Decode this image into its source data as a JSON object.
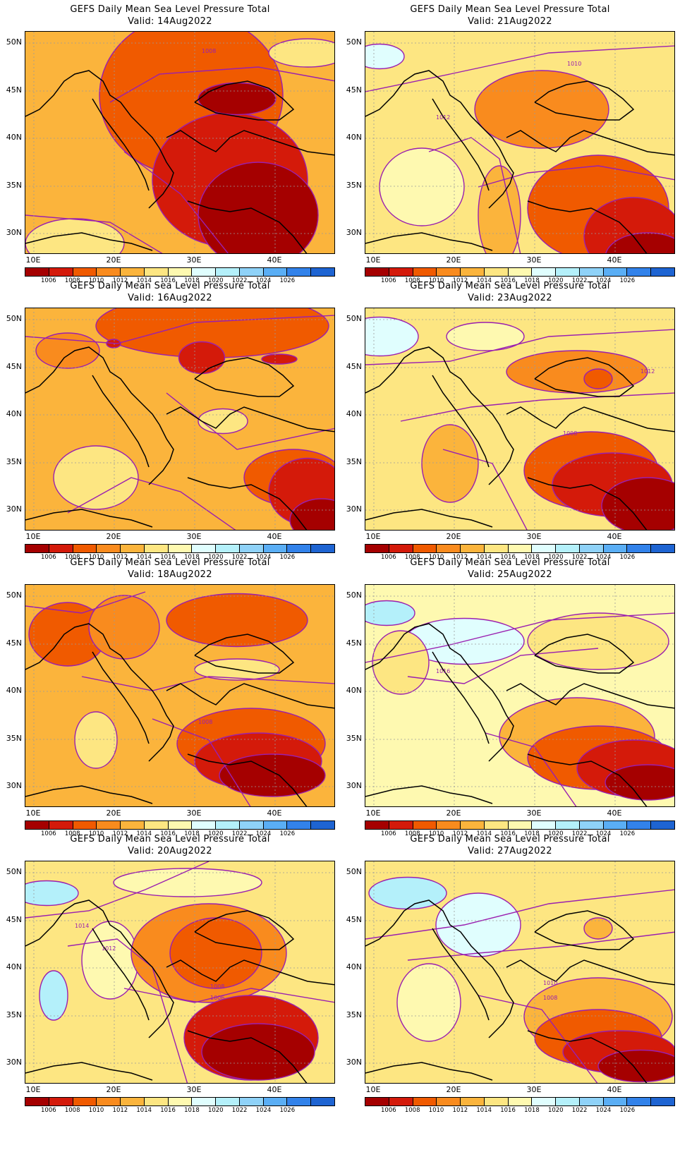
{
  "title": "GEFS Daily Mean Sea Level Pressure Total",
  "colorbar": {
    "levels": [
      "1006",
      "1008",
      "1010",
      "1012",
      "1014",
      "1016",
      "1018",
      "1020",
      "1022",
      "1024",
      "1026"
    ],
    "colors": [
      "#a50000",
      "#d41a0a",
      "#f05a00",
      "#f98b1e",
      "#fbb43c",
      "#fde682",
      "#fef9b0",
      "#e0fefe",
      "#b4f0fa",
      "#8fd2f8",
      "#5aaef5",
      "#3282ea",
      "#1e64d2"
    ]
  },
  "axes": {
    "lat_labels": [
      "50N",
      "45N",
      "40N",
      "35N",
      "30N"
    ],
    "lon_labels": [
      "10E",
      "20E",
      "30E",
      "40E"
    ]
  },
  "panels": [
    {
      "valid": "Valid: 14Aug2022",
      "contour_labels": [
        "1008"
      ]
    },
    {
      "valid": "Valid: 21Aug2022",
      "contour_labels": [
        "1012",
        "1010"
      ]
    },
    {
      "valid": "Valid: 16Aug2022",
      "contour_labels": []
    },
    {
      "valid": "Valid: 23Aug2022",
      "contour_labels": [
        "1012",
        "1008"
      ]
    },
    {
      "valid": "Valid: 18Aug2022",
      "contour_labels": [
        "1008"
      ]
    },
    {
      "valid": "Valid: 25Aug2022",
      "contour_labels": [
        "1016"
      ]
    },
    {
      "valid": "Valid: 20Aug2022",
      "contour_labels": [
        "1014",
        "1012",
        "1008",
        "1006"
      ]
    },
    {
      "valid": "Valid: 27Aug2022",
      "contour_labels": [
        "1010",
        "1008"
      ]
    }
  ],
  "maps": [
    {
      "bg": "#fbb43c",
      "blobs": [
        [
          235,
          90,
          260,
          230,
          "#f05a00"
        ],
        [
          290,
          210,
          220,
          190,
          "#d41a0a"
        ],
        [
          330,
          260,
          170,
          150,
          "#a50000"
        ],
        [
          300,
          95,
          110,
          45,
          "#a50000"
        ],
        [
          70,
          300,
          140,
          70,
          "#fde682"
        ],
        [
          400,
          30,
          110,
          40,
          "#fde682"
        ]
      ],
      "lines": [
        [
          0,
          260,
          120,
          270,
          220,
          330
        ],
        [
          120,
          100,
          190,
          60,
          330,
          50,
          440,
          70
        ],
        [
          140,
          170,
          220,
          230,
          300,
          330
        ]
      ],
      "clabels": [
        [
          250,
          30
        ]
      ]
    },
    {
      "bg": "#fde682",
      "blobs": [
        [
          20,
          35,
          70,
          35,
          "#e0fefe"
        ],
        [
          250,
          110,
          190,
          110,
          "#f98b1e"
        ],
        [
          330,
          250,
          200,
          150,
          "#f05a00"
        ],
        [
          380,
          290,
          140,
          110,
          "#d41a0a"
        ],
        [
          400,
          320,
          120,
          70,
          "#a50000"
        ],
        [
          190,
          260,
          60,
          140,
          "#fbb43c"
        ],
        [
          80,
          220,
          120,
          110,
          "#fef9b0"
        ]
      ],
      "lines": [
        [
          0,
          85,
          120,
          60,
          260,
          30,
          440,
          20
        ],
        [
          90,
          170,
          150,
          150,
          190,
          180,
          220,
          316
        ],
        [
          160,
          220,
          230,
          200,
          330,
          190,
          440,
          210
        ]
      ],
      "clabels": [
        [
          100,
          124
        ],
        [
          286,
          48
        ]
      ]
    },
    {
      "bg": "#fbb43c",
      "blobs": [
        [
          265,
          25,
          330,
          90,
          "#f05a00"
        ],
        [
          250,
          70,
          65,
          45,
          "#d41a0a"
        ],
        [
          125,
          50,
          20,
          12,
          "#d41a0a"
        ],
        [
          360,
          72,
          50,
          14,
          "#d41a0a"
        ],
        [
          380,
          240,
          140,
          80,
          "#f05a00"
        ],
        [
          400,
          260,
          110,
          95,
          "#d41a0a"
        ],
        [
          420,
          300,
          90,
          60,
          "#a50000"
        ],
        [
          100,
          240,
          120,
          90,
          "#fde682"
        ],
        [
          280,
          160,
          70,
          35,
          "#fde682"
        ],
        [
          60,
          60,
          90,
          50,
          "#f98b1e"
        ]
      ],
      "lines": [
        [
          0,
          40,
          130,
          50,
          240,
          20,
          440,
          10
        ],
        [
          200,
          120,
          250,
          160,
          300,
          200,
          440,
          170
        ],
        [
          60,
          290,
          150,
          240,
          220,
          260,
          300,
          316
        ]
      ],
      "clabels": []
    },
    {
      "bg": "#fde682",
      "blobs": [
        [
          20,
          40,
          110,
          55,
          "#e0fefe"
        ],
        [
          170,
          40,
          110,
          40,
          "#fef9b0"
        ],
        [
          300,
          90,
          200,
          60,
          "#f98b1e"
        ],
        [
          330,
          100,
          40,
          28,
          "#f05a00"
        ],
        [
          320,
          230,
          190,
          110,
          "#f05a00"
        ],
        [
          350,
          250,
          170,
          90,
          "#d41a0a"
        ],
        [
          400,
          280,
          130,
          80,
          "#a50000"
        ],
        [
          120,
          220,
          80,
          110,
          "#fbb43c"
        ]
      ],
      "lines": [
        [
          0,
          80,
          120,
          75,
          260,
          40,
          440,
          30
        ],
        [
          50,
          160,
          150,
          140,
          250,
          130,
          440,
          120
        ],
        [
          110,
          200,
          180,
          220,
          230,
          316
        ]
      ],
      "clabels": [
        [
          390,
          92
        ],
        [
          280,
          180
        ]
      ]
    },
    {
      "bg": "#fbb43c",
      "blobs": [
        [
          60,
          70,
          110,
          90,
          "#f05a00"
        ],
        [
          300,
          50,
          200,
          75,
          "#f05a00"
        ],
        [
          320,
          225,
          210,
          100,
          "#f05a00"
        ],
        [
          330,
          250,
          180,
          80,
          "#d41a0a"
        ],
        [
          350,
          270,
          150,
          60,
          "#a50000"
        ],
        [
          100,
          220,
          60,
          80,
          "#fde682"
        ],
        [
          300,
          120,
          120,
          30,
          "#fde682"
        ],
        [
          140,
          60,
          100,
          90,
          "#f98b1e"
        ]
      ],
      "lines": [
        [
          0,
          30,
          80,
          40,
          170,
          10
        ],
        [
          80,
          130,
          180,
          150,
          260,
          130,
          440,
          140
        ],
        [
          180,
          190,
          260,
          220,
          320,
          316
        ]
      ],
      "clabels": [
        [
          245,
          197
        ]
      ]
    },
    {
      "bg": "#fef9b0",
      "blobs": [
        [
          140,
          80,
          170,
          65,
          "#e0fefe"
        ],
        [
          30,
          40,
          80,
          35,
          "#b4f0fa"
        ],
        [
          330,
          80,
          200,
          80,
          "#fde682"
        ],
        [
          300,
          215,
          220,
          110,
          "#fbb43c"
        ],
        [
          330,
          245,
          200,
          90,
          "#f05a00"
        ],
        [
          380,
          260,
          160,
          80,
          "#d41a0a"
        ],
        [
          400,
          280,
          120,
          50,
          "#a50000"
        ],
        [
          50,
          110,
          80,
          90,
          "#fde682"
        ]
      ],
      "lines": [
        [
          0,
          110,
          120,
          85,
          260,
          50,
          440,
          40
        ],
        [
          60,
          130,
          140,
          140,
          220,
          100,
          330,
          90
        ],
        [
          170,
          210,
          240,
          230,
          300,
          316
        ]
      ],
      "clabels": [
        [
          100,
          125
        ]
      ]
    },
    {
      "bg": "#fde682",
      "blobs": [
        [
          30,
          45,
          90,
          35,
          "#b4f0fa"
        ],
        [
          40,
          190,
          40,
          70,
          "#b4f0fa"
        ],
        [
          120,
          140,
          80,
          110,
          "#fef9b0"
        ],
        [
          260,
          130,
          220,
          140,
          "#f98b1e"
        ],
        [
          270,
          130,
          130,
          100,
          "#f05a00"
        ],
        [
          320,
          250,
          190,
          120,
          "#d41a0a"
        ],
        [
          330,
          270,
          160,
          80,
          "#a50000"
        ],
        [
          230,
          30,
          210,
          40,
          "#fef9b0"
        ]
      ],
      "lines": [
        [
          0,
          80,
          90,
          70,
          170,
          40,
          260,
          0
        ],
        [
          60,
          120,
          130,
          110,
          180,
          150,
          230,
          316
        ],
        [
          140,
          180,
          240,
          200,
          320,
          180,
          440,
          200
        ]
      ],
      "clabels": [
        [
          70,
          94
        ],
        [
          108,
          126
        ],
        [
          262,
          180
        ],
        [
          262,
          196
        ]
      ]
    },
    {
      "bg": "#fde682",
      "blobs": [
        [
          60,
          45,
          110,
          45,
          "#b4f0fa"
        ],
        [
          160,
          90,
          120,
          90,
          "#e0fefe"
        ],
        [
          330,
          95,
          40,
          30,
          "#fbb43c"
        ],
        [
          330,
          220,
          210,
          110,
          "#fbb43c"
        ],
        [
          330,
          250,
          180,
          80,
          "#f05a00"
        ],
        [
          360,
          270,
          160,
          60,
          "#d41a0a"
        ],
        [
          390,
          290,
          120,
          45,
          "#a50000"
        ],
        [
          90,
          200,
          90,
          110,
          "#fef9b0"
        ]
      ],
      "lines": [
        [
          0,
          110,
          140,
          90,
          260,
          60,
          440,
          40
        ],
        [
          60,
          140,
          160,
          130,
          280,
          120,
          440,
          100
        ],
        [
          160,
          190,
          250,
          210,
          330,
          316
        ]
      ],
      "clabels": [
        [
          252,
          175
        ],
        [
          252,
          196
        ]
      ]
    }
  ]
}
